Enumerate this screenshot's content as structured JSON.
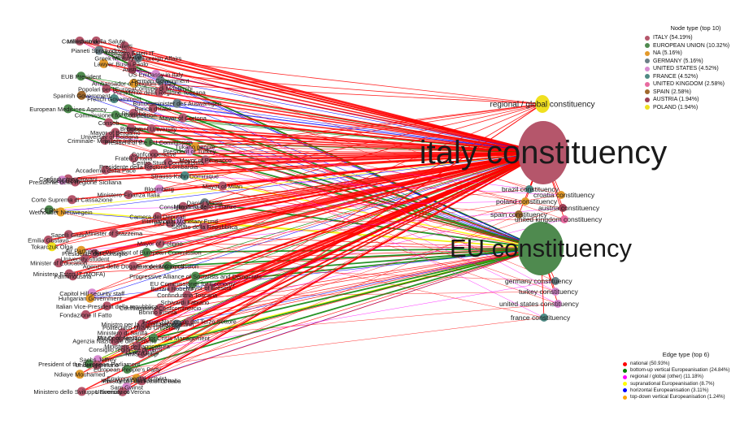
{
  "node_legend": {
    "title": "Node type (top 10)",
    "items": [
      {
        "label": "ITALY (54.19%)",
        "color": "#b5566b"
      },
      {
        "label": "EUROPEAN UNION (10.32%)",
        "color": "#4f8a4f"
      },
      {
        "label": "NA (5.16%)",
        "color": "#e39a2a"
      },
      {
        "label": "GERMANY (5.16%)",
        "color": "#6b7f86"
      },
      {
        "label": "UNITED STATES (4.52%)",
        "color": "#d98ad0"
      },
      {
        "label": "FRANCE (4.52%)",
        "color": "#4f8a84"
      },
      {
        "label": "UNITED KINGDOM (2.58%)",
        "color": "#e86aa0"
      },
      {
        "label": "SPAIN (2.58%)",
        "color": "#a0682c"
      },
      {
        "label": "AUSTRIA (1.94%)",
        "color": "#9e3f55"
      },
      {
        "label": "POLAND (1.94%)",
        "color": "#f0e020"
      }
    ]
  },
  "edge_legend": {
    "title": "Edge type (top 6)",
    "items": [
      {
        "label": "national (50.93%)",
        "color": "#ff0000"
      },
      {
        "label": "bottom-up vertical Europeanisation (24.84%)",
        "color": "#008000"
      },
      {
        "label": "regional / global (other) (11.18%)",
        "color": "#ff00ff"
      },
      {
        "label": "supranational Europeanisation (8.7%)",
        "color": "#ffff00"
      },
      {
        "label": "horizontal Europeanisation (3.11%)",
        "color": "#0000ff"
      },
      {
        "label": "top-down vertical Europeanisation (1.24%)",
        "color": "#ffa500"
      }
    ]
  },
  "hubs": [
    {
      "id": "italy",
      "label": "italy constituency",
      "type": "ITALY"
    },
    {
      "id": "eu",
      "label": "EU constituency",
      "type": "EUROPEAN UNION"
    },
    {
      "id": "regional",
      "label": "regional / global constituency",
      "type": "POLAND"
    }
  ],
  "right_nodes": [
    {
      "label": "brazil constituency",
      "type": "FRANCE"
    },
    {
      "label": "croatia constituency",
      "type": "NA"
    },
    {
      "label": "poland constituency",
      "type": "NA"
    },
    {
      "label": "austria constituency",
      "type": "AUSTRIA"
    },
    {
      "label": "spain constituency",
      "type": "SPAIN"
    },
    {
      "label": "united kingdom constituency",
      "type": "UNITED KINGDOM"
    },
    {
      "label": "germany constituency",
      "type": "GERMANY"
    },
    {
      "label": "turkey constituency",
      "type": "UNITED STATES"
    },
    {
      "label": "united states constituency",
      "type": "UNITED STATES"
    },
    {
      "label": "france constituency",
      "type": "FRANCE"
    }
  ],
  "actors": [
    {
      "label": "Confindustria",
      "type": "ITALY",
      "edge": "national"
    },
    {
      "label": "Ministero della Salute",
      "type": "ITALY",
      "edge": "national"
    },
    {
      "label": "Giletti",
      "type": "ITALY",
      "edge": "national"
    },
    {
      "label": "Pianeti Sprajkodrosc",
      "type": "GERMANY",
      "edge": "bottom-up vertical Europeanisation"
    },
    {
      "label": "Ministero Esteri IT",
      "type": "ITALY",
      "edge": "national"
    },
    {
      "label": "Tamil Nano",
      "type": "ITALY",
      "edge": "national"
    },
    {
      "label": "Greek Ministry of Foreign Affairs",
      "type": "GERMANY",
      "edge": "regional / global (other)"
    },
    {
      "label": "Lawyer",
      "type": "NA",
      "edge": "national"
    },
    {
      "label": "Busei Paolo",
      "type": "ITALY",
      "edge": "national"
    },
    {
      "label": "Austria",
      "type": "AUSTRIA",
      "edge": "horizontal Europeanisation"
    },
    {
      "label": "US Embassy in Italy",
      "type": "UNITED STATES",
      "edge": "regional / global (other)"
    },
    {
      "label": "EUB President",
      "type": "EUROPEAN UNION",
      "edge": "bottom-up vertical Europeanisation"
    },
    {
      "label": "German Government",
      "type": "GERMANY",
      "edge": "horizontal Europeanisation"
    },
    {
      "label": "Ambassador of Belgium in Italy",
      "type": "NA",
      "edge": "regional / global (other)"
    },
    {
      "label": "Comune di Monterchi",
      "type": "ITALY",
      "edge": "national"
    },
    {
      "label": "Popolari per l'Europa",
      "type": "ITALY",
      "edge": "national"
    },
    {
      "label": "Presidente della Regione Toscana",
      "type": "ITALY",
      "edge": "national"
    },
    {
      "label": "Spanish Government",
      "type": "SPAIN",
      "edge": "horizontal Europeanisation"
    },
    {
      "label": "French Government",
      "type": "FRANCE",
      "edge": "horizontal Europeanisation"
    },
    {
      "label": "Bundesminister des Auswärtigen",
      "type": "GERMANY",
      "edge": "horizontal Europeanisation"
    },
    {
      "label": "Banca d'Italia",
      "type": "ITALY",
      "edge": "national"
    },
    {
      "label": "European Medicines Agency",
      "type": "EUROPEAN UNION",
      "edge": "bottom-up vertical Europeanisation"
    },
    {
      "label": "Ricerche",
      "type": "ITALY",
      "edge": "national"
    },
    {
      "label": "Commissioner for Competition",
      "type": "EUROPEAN UNION",
      "edge": "bottom-up vertical Europeanisation"
    },
    {
      "label": "Mayor of Cortona",
      "type": "ITALY",
      "edge": "national"
    },
    {
      "label": "Consob",
      "type": "ITALY",
      "edge": "national"
    },
    {
      "label": "Bocconi University",
      "type": "ITALY",
      "edge": "national"
    },
    {
      "label": "Brembo",
      "type": "ITALY",
      "edge": "national"
    },
    {
      "label": "Mayor of Bergamo",
      "type": "ITALY",
      "edge": "national"
    },
    {
      "label": "University of Bologna",
      "type": "ITALY",
      "edge": "national"
    },
    {
      "label": "Criminale- Ministero Interno",
      "type": "ITALY",
      "edge": "national"
    },
    {
      "label": "President of the EU Commission",
      "type": "EUROPEAN UNION",
      "edge": "bottom-up vertical Europeanisation"
    },
    {
      "label": "Tukano people",
      "type": "NA",
      "edge": "regional / global (other)"
    },
    {
      "label": "President of Turkey",
      "type": "UNITED STATES",
      "edge": "regional / global (other)"
    },
    {
      "label": "Confcooperative",
      "type": "ITALY",
      "edge": "national"
    },
    {
      "label": "Fratelli d'Italia",
      "type": "ITALY",
      "edge": "national"
    },
    {
      "label": "Mayor of Pensacco",
      "type": "ITALY",
      "edge": "national"
    },
    {
      "label": "Centro Studi Confindustria",
      "type": "ITALY",
      "edge": "national"
    },
    {
      "label": "Presidente della Regione Lombardia",
      "type": "ITALY",
      "edge": "national"
    },
    {
      "label": "Accademia della Pace",
      "type": "ITALY",
      "edge": "national"
    },
    {
      "label": "Strauss-Kahn Dominique",
      "type": "FRANCE",
      "edge": "supranational Europeanisation"
    },
    {
      "label": "Confindustria Giovani",
      "type": "ITALY",
      "edge": "national"
    },
    {
      "label": "Export USA",
      "type": "UNITED STATES",
      "edge": "regional / global (other)"
    },
    {
      "label": "Presidente della Regione Siciliana",
      "type": "ITALY",
      "edge": "national"
    },
    {
      "label": "Mayor of Milan",
      "type": "ITALY",
      "edge": "national"
    },
    {
      "label": "Bloomberg",
      "type": "UNITED STATES",
      "edge": "regional / global (other)"
    },
    {
      "label": "Ministero Finanza Italia",
      "type": "ITALY",
      "edge": "national"
    },
    {
      "label": "Corte Suprema di Cassazione",
      "type": "ITALY",
      "edge": "national"
    },
    {
      "label": "Daniel Marek",
      "type": "GERMANY",
      "edge": "bottom-up vertical Europeanisation"
    },
    {
      "label": "Ministero delle Finanze",
      "type": "ITALY",
      "edge": "national"
    },
    {
      "label": "Consiglio di Stato",
      "type": "ITALY",
      "edge": "national"
    },
    {
      "label": "CERN",
      "type": "EUROPEAN UNION",
      "edge": "supranational Europeanisation"
    },
    {
      "label": "Wethouder Nieuwegein",
      "type": "NA",
      "edge": "horizontal Europeanisation"
    },
    {
      "label": "Camera dei Deputati",
      "type": "ITALY",
      "edge": "national"
    },
    {
      "label": "International Monetary Fund",
      "type": "UNITED STATES",
      "edge": "supranational Europeanisation"
    },
    {
      "label": "PIU Europa",
      "type": "ITALY",
      "edge": "national"
    },
    {
      "label": "Senato della Repubblica",
      "type": "ITALY",
      "edge": "national"
    },
    {
      "label": "Minister of Stazzema",
      "type": "ITALY",
      "edge": "national"
    },
    {
      "label": "Sapelli Giulio",
      "type": "ITALY",
      "edge": "national"
    },
    {
      "label": "Emilia Gustavo",
      "type": "ITALY",
      "edge": "national"
    },
    {
      "label": "Mayor of Foligno",
      "type": "ITALY",
      "edge": "national"
    },
    {
      "label": "Tokarczuk Olga",
      "type": "POLAND",
      "edge": "regional / global (other)"
    },
    {
      "label": "Air Partners",
      "type": "NA",
      "edge": "national"
    },
    {
      "label": "Vice-President of European Commission",
      "type": "EUROPEAN UNION",
      "edge": "bottom-up vertical Europeanisation"
    },
    {
      "label": "Presidente del Consiglio",
      "type": "ITALY",
      "edge": "national"
    },
    {
      "label": "University student",
      "type": "ITALY",
      "edge": "national"
    },
    {
      "label": "Minister of Education",
      "type": "ITALY",
      "edge": "national"
    },
    {
      "label": "European Commission",
      "type": "EUROPEAN UNION",
      "edge": "bottom-up vertical Europeanisation"
    },
    {
      "label": "Agenzia delle Dogane e dei Monopoli",
      "type": "ITALY",
      "edge": "national"
    },
    {
      "label": "Ministero Esteri IT (MOFA)",
      "type": "ITALY",
      "edge": "national"
    },
    {
      "label": "Farmindustria",
      "type": "ITALY",
      "edge": "national"
    },
    {
      "label": "Progressive Alliance of Socialists and Democrats",
      "type": "EUROPEAN UNION",
      "edge": "bottom-up vertical Europeanisation"
    },
    {
      "label": "EU Commissioner for Economy",
      "type": "EUROPEAN UNION",
      "edge": "bottom-up vertical Europeanisation"
    },
    {
      "label": "Mayor of Brescia",
      "type": "ITALY",
      "edge": "national"
    },
    {
      "label": "Buriani Roberto",
      "type": "ITALY",
      "edge": "national"
    },
    {
      "label": "Capitol Hill security staff",
      "type": "UNITED STATES",
      "edge": "regional / global (other)"
    },
    {
      "label": "Confindustria Toscana",
      "type": "ITALY",
      "edge": "national"
    },
    {
      "label": "Hungarian Government",
      "type": "NA",
      "edge": "horizontal Europeanisation"
    },
    {
      "label": "Schivardi Fabiano",
      "type": "ITALY",
      "edge": "national"
    },
    {
      "label": "Italian Vice-President della repubblica",
      "type": "ITALY",
      "edge": "national"
    },
    {
      "label": "Conftrasporto-Confcommercio",
      "type": "ITALY",
      "edge": "national"
    },
    {
      "label": "Bonino Emma",
      "type": "ITALY",
      "edge": "national"
    },
    {
      "label": "Fondazione Il Fatto",
      "type": "ITALY",
      "edge": "national"
    },
    {
      "label": "Forum Nazionale del Terzo Settore",
      "type": "ITALY",
      "edge": "national"
    },
    {
      "label": "Ministro per la digitalizzazione",
      "type": "ITALY",
      "edge": "national"
    },
    {
      "label": "Bertelsmann",
      "type": "GERMANY",
      "edge": "horizontal Europeanisation"
    },
    {
      "label": "Politecnico Milano University",
      "type": "ITALY",
      "edge": "national"
    },
    {
      "label": "Ministero di Sanità",
      "type": "ITALY",
      "edge": "national"
    },
    {
      "label": "EU Commissioner for Crisis Management",
      "type": "EUROPEAN UNION",
      "edge": "bottom-up vertical Europeanisation"
    },
    {
      "label": "Mayor of Arezzo",
      "type": "ITALY",
      "edge": "national"
    },
    {
      "label": "Agenzia Nazionale del Turismo",
      "type": "ITALY",
      "edge": "national"
    },
    {
      "label": "Ministero dell'agricoltura",
      "type": "ITALY",
      "edge": "national"
    },
    {
      "label": "Consiglio regionale di Terni",
      "type": "ITALY",
      "edge": "national"
    },
    {
      "label": "Forza Italia",
      "type": "ITALY",
      "edge": "national"
    },
    {
      "label": "NMS Group",
      "type": "ITALY",
      "edge": "national"
    },
    {
      "label": "Sachs Jeffrey",
      "type": "UNITED STATES",
      "edge": "supranational Europeanisation"
    },
    {
      "label": "President of the European Parliament",
      "type": "EUROPEAN UNION",
      "edge": "bottom-up vertical Europeanisation"
    },
    {
      "label": "Undersegretario",
      "type": "ITALY",
      "edge": "national"
    },
    {
      "label": "European People's Party",
      "type": "EUROPEAN UNION",
      "edge": "bottom-up vertical Europeanisation"
    },
    {
      "label": "Ndiaye Mouhamed",
      "type": "NA",
      "edge": "regional / global (other)"
    },
    {
      "label": "Environmental activist",
      "type": "NA",
      "edge": "regional / global (other)"
    },
    {
      "label": "Ministry of Finance of Greece",
      "type": "GERMANY",
      "edge": "horizontal Europeanisation"
    },
    {
      "label": "Presidente dei Fratelli d'Italia",
      "type": "ITALY",
      "edge": "national"
    },
    {
      "label": "Sam Gwinst",
      "type": "UNITED STATES",
      "edge": "regional / global (other)"
    },
    {
      "label": "University of Verona",
      "type": "ITALY",
      "edge": "national"
    },
    {
      "label": "Ministero dello Sviluppo Economico",
      "type": "ITALY",
      "edge": "national"
    }
  ]
}
